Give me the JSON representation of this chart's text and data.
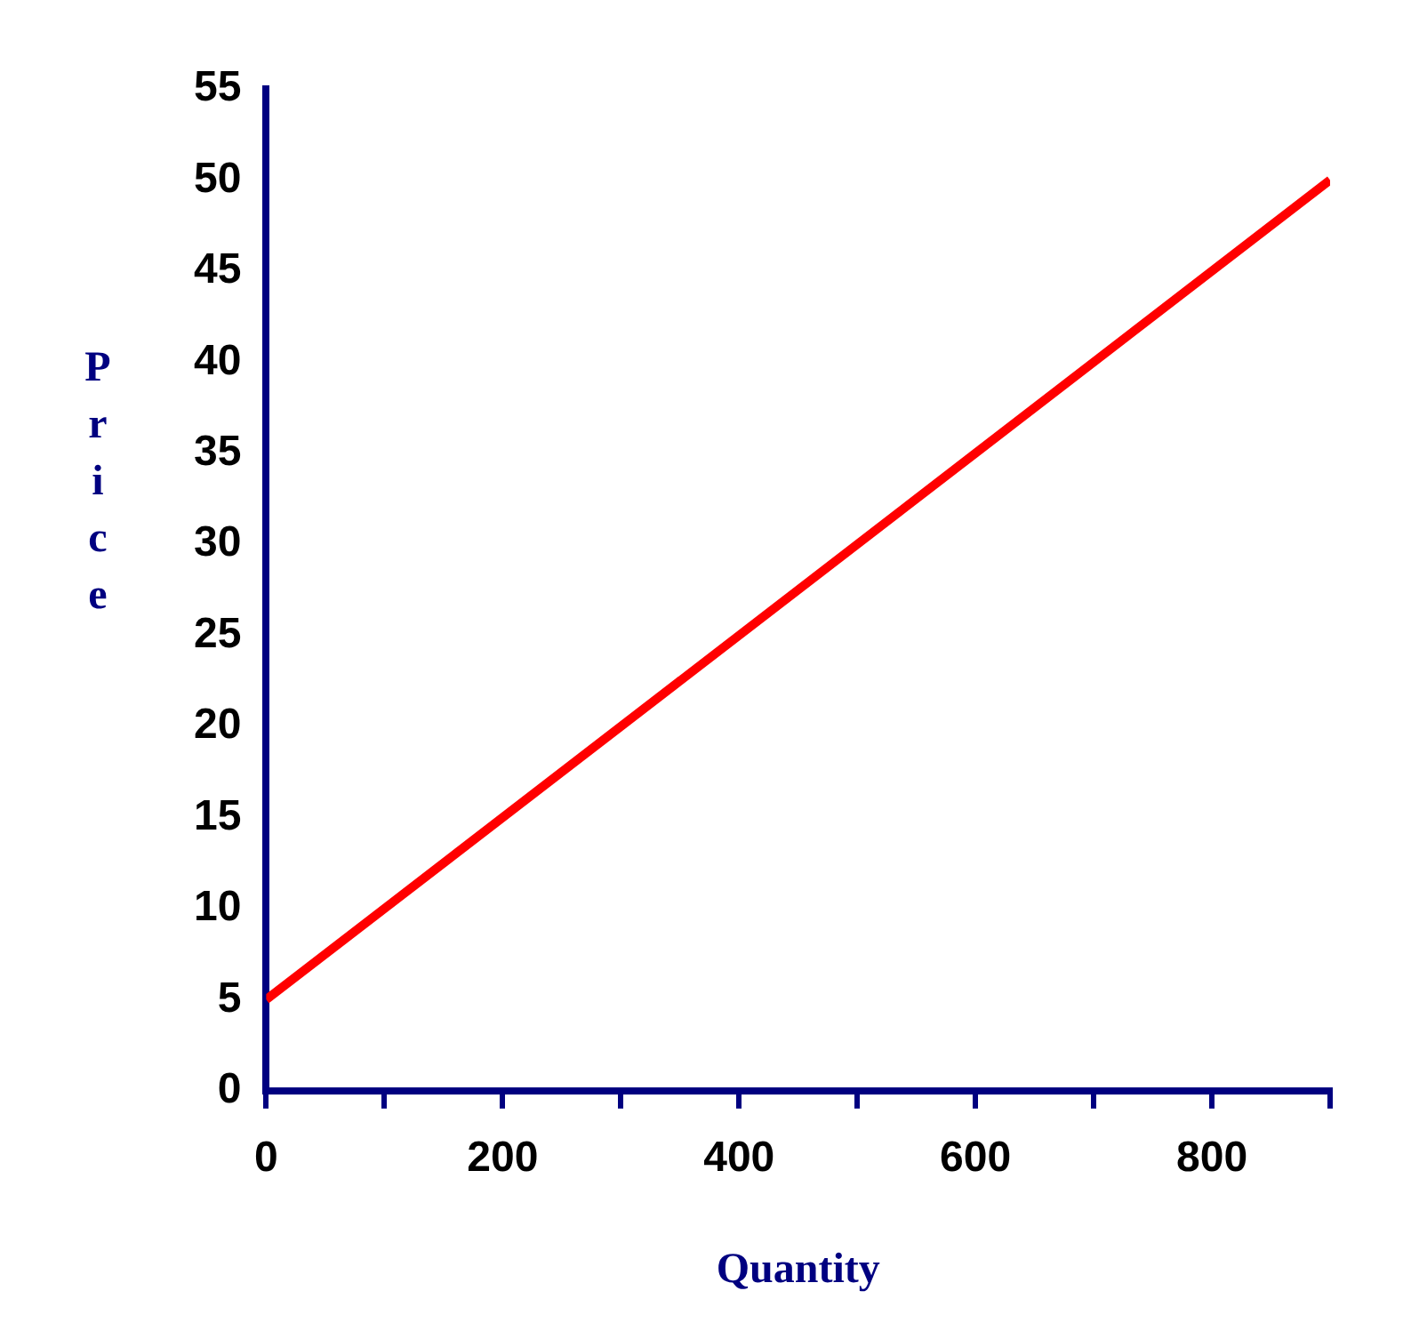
{
  "chart_data": {
    "type": "line",
    "xlabel": "Quantity",
    "ylabel": "Price",
    "x": [
      0,
      900
    ],
    "series": [
      {
        "color": "#ff0000",
        "values": [
          5,
          50
        ]
      }
    ],
    "xlim": [
      0,
      900
    ],
    "xticks": [
      0,
      {
        "value": 100,
        "label": null
      },
      200,
      {
        "value": 300,
        "label": null
      },
      400,
      {
        "value": 500,
        "label": null
      },
      600,
      {
        "value": 700,
        "label": null
      },
      800,
      {
        "value": 900,
        "label": null
      }
    ],
    "ylim": [
      0,
      55
    ],
    "yticks": [
      0,
      5,
      10,
      15,
      20,
      25,
      30,
      35,
      40,
      45,
      50,
      55
    ],
    "grid": false,
    "legend": false,
    "marker": "none",
    "line_style": "solid"
  }
}
